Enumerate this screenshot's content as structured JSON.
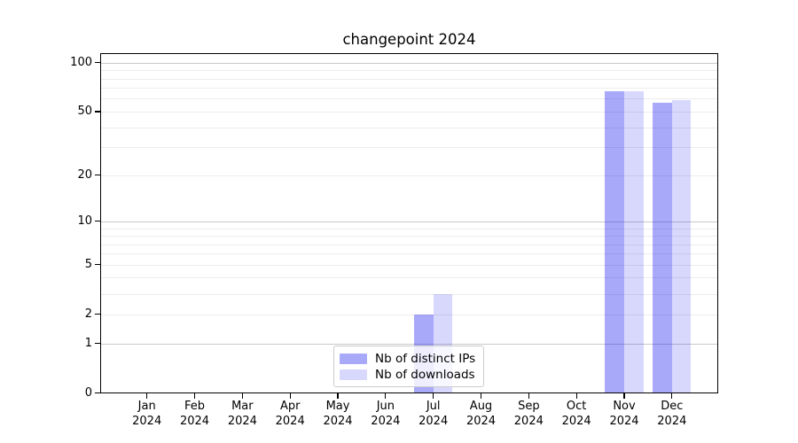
{
  "title": "changepoint 2024",
  "legend": {
    "entries": [
      {
        "label": "Nb of distinct IPs",
        "color": "rgba(10,10,242,0.35)"
      },
      {
        "label": "Nb of downloads",
        "color": "rgba(10,10,242,0.16)"
      }
    ]
  },
  "chart_data": {
    "type": "bar",
    "title": "changepoint 2024",
    "categories": [
      "Jan 2024",
      "Feb 2024",
      "Mar 2024",
      "Apr 2024",
      "May 2024",
      "Jun 2024",
      "Jul 2024",
      "Aug 2024",
      "Sep 2024",
      "Oct 2024",
      "Nov 2024",
      "Dec 2024"
    ],
    "series": [
      {
        "name": "Nb of distinct IPs",
        "color": "rgba(10,10,242,0.35)",
        "values": [
          0,
          0,
          0,
          0,
          0,
          0,
          2,
          0,
          0,
          0,
          67,
          57
        ]
      },
      {
        "name": "Nb of downloads",
        "color": "rgba(10,10,242,0.16)",
        "values": [
          0,
          0,
          0,
          0,
          0,
          0,
          3,
          0,
          0,
          0,
          67,
          59
        ]
      }
    ],
    "xlabel": "",
    "ylabel": "",
    "y_axis": {
      "scale": "log1p",
      "tick_labels": [
        0,
        1,
        2,
        5,
        10,
        20,
        50,
        100
      ],
      "major_gridlines": [
        1,
        10,
        100
      ],
      "minor_gridlines": [
        2,
        3,
        4,
        5,
        6,
        7,
        8,
        9,
        20,
        30,
        40,
        50,
        60,
        70,
        80,
        90
      ],
      "ylim": [
        0,
        114
      ]
    },
    "grid": "horizontal",
    "legend_position": "lower center"
  }
}
